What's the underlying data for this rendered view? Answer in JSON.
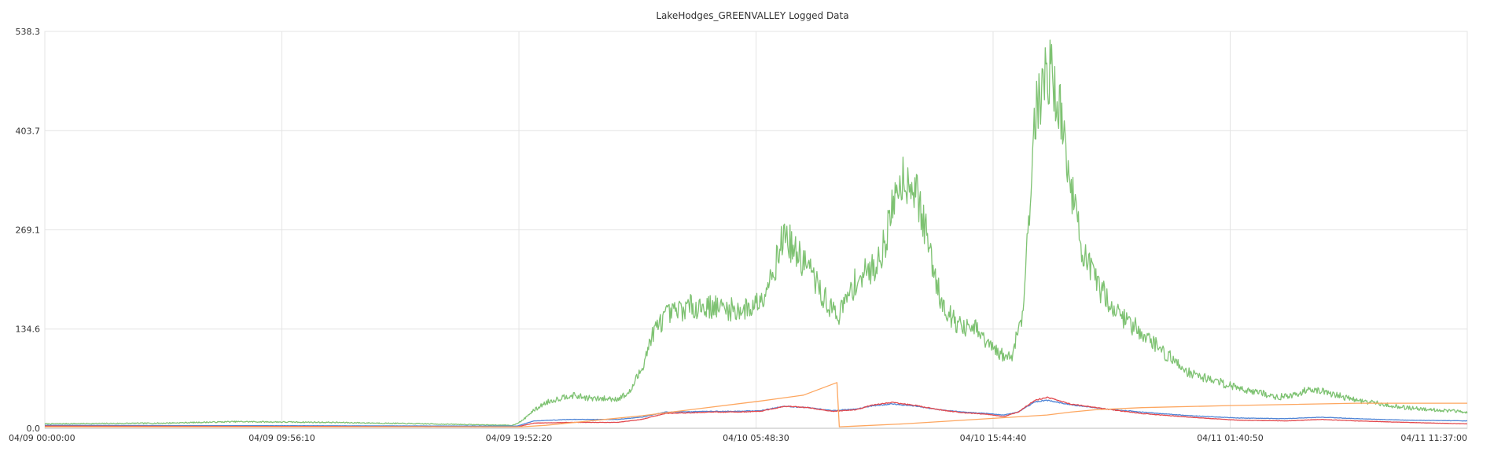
{
  "chart_data": {
    "type": "line",
    "title": "LakeHodges_GREENVALLEY Logged Data",
    "xlabel": "",
    "ylabel": "",
    "x_ticks": [
      "04/09 00:00:00",
      "04/09 09:56:10",
      "04/09 19:52:20",
      "04/10 05:48:30",
      "04/10 15:44:40",
      "04/11 01:40:50",
      "04/11 11:37:00"
    ],
    "x_ticks_hours": [
      0,
      9.936,
      19.872,
      29.808,
      39.744,
      49.681,
      59.617
    ],
    "y_ticks": [
      "0.0",
      "134.6",
      "269.1",
      "403.7",
      "538.3"
    ],
    "ylim": [
      0,
      538.3
    ],
    "xlim_hours": [
      0,
      59.617
    ],
    "grid": true,
    "legend": "none",
    "series": [
      {
        "color": "#7ec272",
        "noise": 0.1,
        "points": [
          [
            0,
            6
          ],
          [
            5,
            7
          ],
          [
            8,
            9
          ],
          [
            12,
            8
          ],
          [
            16,
            6
          ],
          [
            19.6,
            4
          ],
          [
            20,
            10
          ],
          [
            20.4,
            22
          ],
          [
            21,
            35
          ],
          [
            22,
            45
          ],
          [
            23,
            40
          ],
          [
            24,
            40
          ],
          [
            24.5,
            48
          ],
          [
            25,
            80
          ],
          [
            25.5,
            130
          ],
          [
            26,
            152
          ],
          [
            27,
            165
          ],
          [
            28,
            165
          ],
          [
            29,
            160
          ],
          [
            29.5,
            162
          ],
          [
            30,
            175
          ],
          [
            30.6,
            220
          ],
          [
            31,
            265
          ],
          [
            31.5,
            235
          ],
          [
            32,
            220
          ],
          [
            32.5,
            185
          ],
          [
            33,
            160
          ],
          [
            33.3,
            155
          ],
          [
            34,
            200
          ],
          [
            34.8,
            220
          ],
          [
            35.2,
            250
          ],
          [
            35.7,
            325
          ],
          [
            36,
            342
          ],
          [
            36.5,
            325
          ],
          [
            37,
            255
          ],
          [
            37.5,
            180
          ],
          [
            38,
            150
          ],
          [
            38.5,
            135
          ],
          [
            39,
            135
          ],
          [
            39.5,
            115
          ],
          [
            40,
            100
          ],
          [
            40.5,
            96
          ],
          [
            41,
            160
          ],
          [
            41.2,
            270
          ],
          [
            41.5,
            420
          ],
          [
            42,
            490
          ],
          [
            42.3,
            470
          ],
          [
            42.6,
            420
          ],
          [
            43,
            330
          ],
          [
            43.5,
            240
          ],
          [
            44,
            200
          ],
          [
            45,
            155
          ],
          [
            46,
            130
          ],
          [
            47,
            100
          ],
          [
            48,
            75
          ],
          [
            50,
            55
          ],
          [
            51,
            48
          ],
          [
            51.5,
            42
          ],
          [
            52.5,
            45
          ],
          [
            53,
            55
          ],
          [
            53.5,
            50
          ],
          [
            55,
            38
          ],
          [
            57,
            28
          ],
          [
            59.617,
            22
          ]
        ]
      },
      {
        "color": "#4f85d6",
        "noise": 0.02,
        "points": [
          [
            0,
            4
          ],
          [
            19.8,
            3
          ],
          [
            20.5,
            10
          ],
          [
            22,
            12
          ],
          [
            24,
            12
          ],
          [
            25,
            15
          ],
          [
            26,
            22
          ],
          [
            28,
            23
          ],
          [
            29,
            23
          ],
          [
            30,
            24
          ],
          [
            31,
            30
          ],
          [
            32,
            28
          ],
          [
            33,
            24
          ],
          [
            34,
            26
          ],
          [
            34.6,
            30
          ],
          [
            35.5,
            33
          ],
          [
            36.5,
            30
          ],
          [
            37.5,
            25
          ],
          [
            38.5,
            22
          ],
          [
            39.5,
            20
          ],
          [
            40.2,
            18
          ],
          [
            40.8,
            22
          ],
          [
            41.5,
            36
          ],
          [
            42,
            38
          ],
          [
            43,
            32
          ],
          [
            44.5,
            26
          ],
          [
            46,
            22
          ],
          [
            48,
            17
          ],
          [
            50,
            14
          ],
          [
            52,
            13
          ],
          [
            53.5,
            15
          ],
          [
            55,
            13
          ],
          [
            57,
            11
          ],
          [
            59.617,
            10
          ]
        ]
      },
      {
        "color": "#e2484d",
        "noise": 0.02,
        "points": [
          [
            0,
            3
          ],
          [
            19.8,
            2
          ],
          [
            20.5,
            7
          ],
          [
            22,
            8
          ],
          [
            24,
            8
          ],
          [
            25,
            12
          ],
          [
            26,
            20
          ],
          [
            28,
            22
          ],
          [
            29,
            22
          ],
          [
            30,
            23
          ],
          [
            31,
            30
          ],
          [
            32,
            28
          ],
          [
            33,
            23
          ],
          [
            34,
            25
          ],
          [
            34.6,
            31
          ],
          [
            35.5,
            35
          ],
          [
            36.5,
            31
          ],
          [
            37.5,
            25
          ],
          [
            38.5,
            21
          ],
          [
            39.5,
            19
          ],
          [
            40.2,
            16
          ],
          [
            40.8,
            22
          ],
          [
            41.5,
            38
          ],
          [
            42,
            42
          ],
          [
            43,
            33
          ],
          [
            44.5,
            26
          ],
          [
            46,
            20
          ],
          [
            48,
            15
          ],
          [
            50,
            11
          ],
          [
            52,
            10
          ],
          [
            53.5,
            12
          ],
          [
            55,
            10
          ],
          [
            57,
            8
          ],
          [
            59.617,
            6
          ]
        ]
      },
      {
        "color": "#fda65f",
        "noise": 0,
        "points": [
          [
            0,
            2
          ],
          [
            20,
            2
          ],
          [
            21,
            4
          ],
          [
            25,
            17
          ],
          [
            30,
            37
          ],
          [
            31.8,
            45
          ],
          [
            33.2,
            62
          ],
          [
            33.3,
            2
          ],
          [
            34,
            3
          ],
          [
            36,
            6
          ],
          [
            38,
            10
          ],
          [
            40,
            14
          ],
          [
            42,
            18
          ],
          [
            43,
            22
          ],
          [
            44,
            25
          ],
          [
            46,
            28
          ],
          [
            50,
            31
          ],
          [
            55,
            34
          ],
          [
            59.617,
            34
          ]
        ]
      }
    ]
  }
}
